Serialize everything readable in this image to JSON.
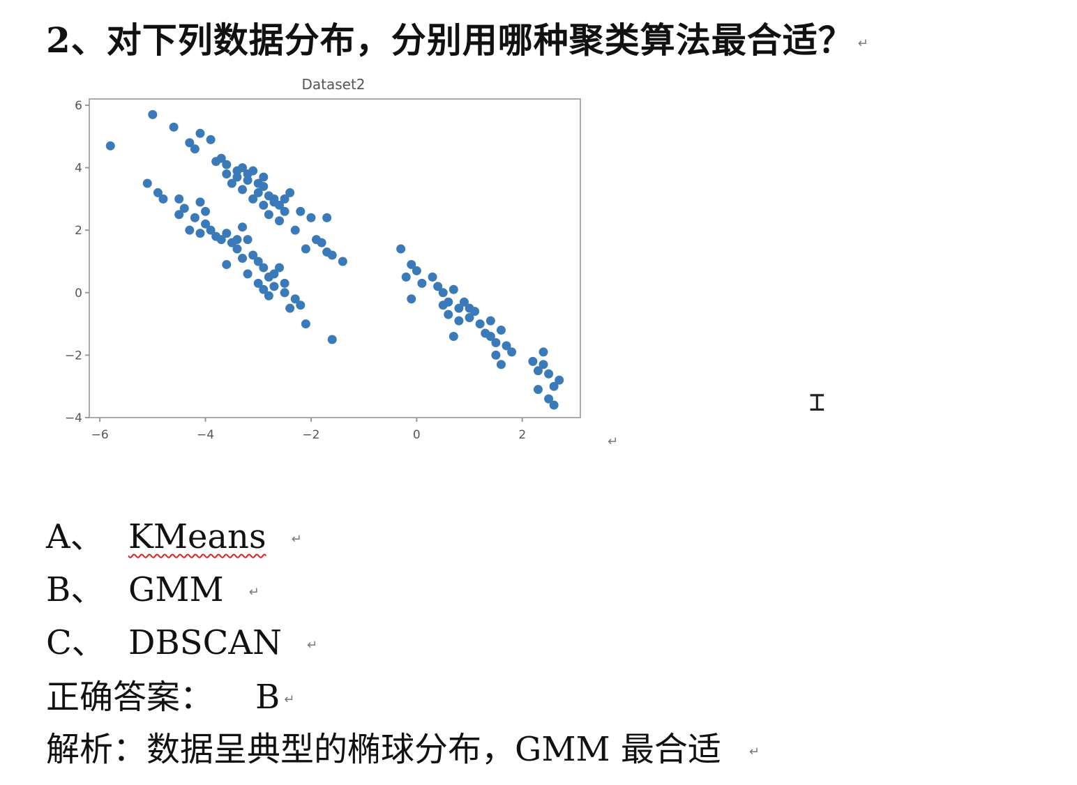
{
  "question": {
    "text": "2、对下列数据分布，分别用哪种聚类算法最合适？"
  },
  "return_mark": "↵",
  "cursor_icon": "text-cursor-icon",
  "options": [
    {
      "letter": "A、",
      "text": "KMeans",
      "spellcheck": true
    },
    {
      "letter": "B、",
      "text": "GMM",
      "spellcheck": false
    },
    {
      "letter": "C、",
      "text": "DBSCAN",
      "spellcheck": false
    }
  ],
  "answer": {
    "label": "正确答案：",
    "value": "B"
  },
  "analysis": {
    "text": "解析：数据呈典型的椭球分布，GMM 最合适"
  },
  "chart_data": {
    "type": "scatter",
    "title": "Dataset2",
    "xlabel": "",
    "ylabel": "",
    "xlim": [
      -6.2,
      3.1
    ],
    "ylim": [
      -4,
      6.2
    ],
    "xticks": [
      -6,
      -4,
      -2,
      0,
      2
    ],
    "yticks": [
      -4,
      -2,
      0,
      2,
      4,
      6
    ],
    "xtick_labels": [
      "−6",
      "−4",
      "−2",
      "0",
      "2"
    ],
    "ytick_labels": [
      "−4",
      "−2",
      "0",
      "2",
      "4",
      "6"
    ],
    "grid": false,
    "legend": "none",
    "color": "#3a7ab8",
    "series": [
      {
        "points": [
          [
            -5.8,
            4.7
          ],
          [
            -5.0,
            5.7
          ],
          [
            -4.6,
            5.3
          ],
          [
            -4.1,
            5.1
          ],
          [
            -3.9,
            4.9
          ],
          [
            -4.3,
            4.8
          ],
          [
            -4.2,
            4.6
          ],
          [
            -3.7,
            4.3
          ],
          [
            -3.6,
            4.1
          ],
          [
            -3.3,
            4.0
          ],
          [
            -3.1,
            3.9
          ],
          [
            -3.4,
            3.7
          ],
          [
            -3.2,
            3.6
          ],
          [
            -3.0,
            3.5
          ],
          [
            -2.9,
            3.7
          ],
          [
            -3.5,
            3.5
          ],
          [
            -3.3,
            3.3
          ],
          [
            -3.0,
            3.2
          ],
          [
            -2.8,
            3.1
          ],
          [
            -3.1,
            3.0
          ],
          [
            -2.7,
            3.0
          ],
          [
            -2.6,
            2.8
          ],
          [
            -2.9,
            2.8
          ],
          [
            -2.5,
            2.6
          ],
          [
            -2.8,
            2.5
          ],
          [
            -2.6,
            2.3
          ],
          [
            -2.2,
            2.6
          ],
          [
            -2.4,
            3.2
          ],
          [
            -2.0,
            2.4
          ],
          [
            -1.7,
            2.4
          ],
          [
            -2.3,
            2.0
          ],
          [
            -1.9,
            1.7
          ],
          [
            -1.8,
            1.6
          ],
          [
            -2.1,
            1.4
          ],
          [
            -1.7,
            1.3
          ],
          [
            -1.6,
            1.2
          ],
          [
            -1.4,
            1.0
          ],
          [
            -3.6,
            3.8
          ],
          [
            -3.8,
            4.2
          ],
          [
            -3.2,
            3.8
          ],
          [
            -2.7,
            2.9
          ],
          [
            -2.5,
            3.0
          ],
          [
            -3.4,
            3.9
          ],
          [
            -2.9,
            3.4
          ]
        ]
      },
      {
        "points": [
          [
            -5.1,
            3.5
          ],
          [
            -4.9,
            3.2
          ],
          [
            -4.8,
            3.0
          ],
          [
            -4.5,
            3.0
          ],
          [
            -4.4,
            2.7
          ],
          [
            -4.5,
            2.5
          ],
          [
            -4.1,
            2.9
          ],
          [
            -4.2,
            2.4
          ],
          [
            -4.0,
            2.2
          ],
          [
            -4.3,
            2.0
          ],
          [
            -4.1,
            1.9
          ],
          [
            -3.9,
            2.0
          ],
          [
            -3.8,
            1.8
          ],
          [
            -3.6,
            1.9
          ],
          [
            -3.5,
            1.6
          ],
          [
            -3.3,
            2.1
          ],
          [
            -3.4,
            1.4
          ],
          [
            -3.2,
            1.7
          ],
          [
            -3.3,
            1.1
          ],
          [
            -3.0,
            1.0
          ],
          [
            -3.6,
            0.9
          ],
          [
            -3.2,
            0.6
          ],
          [
            -2.9,
            0.8
          ],
          [
            -2.8,
            0.5
          ],
          [
            -3.0,
            0.3
          ],
          [
            -2.7,
            0.6
          ],
          [
            -2.5,
            0.3
          ],
          [
            -2.7,
            0.2
          ],
          [
            -2.5,
            0.0
          ],
          [
            -2.3,
            -0.2
          ],
          [
            -2.2,
            -0.4
          ],
          [
            -2.8,
            -0.1
          ],
          [
            -2.4,
            -0.5
          ],
          [
            -2.1,
            -1.0
          ],
          [
            -1.6,
            -1.5
          ],
          [
            -3.1,
            1.2
          ],
          [
            -3.4,
            1.7
          ],
          [
            -2.6,
            0.8
          ],
          [
            -2.9,
            0.1
          ],
          [
            -3.7,
            1.7
          ],
          [
            -4.0,
            2.6
          ]
        ]
      },
      {
        "points": [
          [
            -0.3,
            1.4
          ],
          [
            -0.1,
            0.9
          ],
          [
            -0.2,
            0.5
          ],
          [
            0.0,
            0.7
          ],
          [
            0.1,
            0.3
          ],
          [
            -0.1,
            -0.2
          ],
          [
            0.3,
            0.5
          ],
          [
            0.4,
            0.2
          ],
          [
            0.5,
            0.0
          ],
          [
            0.7,
            0.1
          ],
          [
            0.6,
            -0.3
          ],
          [
            0.8,
            -0.5
          ],
          [
            0.9,
            -0.3
          ],
          [
            0.6,
            -0.7
          ],
          [
            1.0,
            -0.8
          ],
          [
            0.7,
            -1.4
          ],
          [
            1.1,
            -0.6
          ],
          [
            1.2,
            -1.0
          ],
          [
            1.3,
            -1.3
          ],
          [
            1.4,
            -0.9
          ],
          [
            1.5,
            -1.6
          ],
          [
            1.6,
            -1.2
          ],
          [
            1.7,
            -1.7
          ],
          [
            1.5,
            -2.0
          ],
          [
            1.8,
            -1.9
          ],
          [
            1.6,
            -2.3
          ],
          [
            2.2,
            -2.2
          ],
          [
            2.3,
            -2.5
          ],
          [
            2.4,
            -1.9
          ],
          [
            2.5,
            -2.6
          ],
          [
            2.3,
            -3.1
          ],
          [
            2.6,
            -3.0
          ],
          [
            2.7,
            -2.8
          ],
          [
            2.5,
            -3.4
          ],
          [
            2.6,
            -3.6
          ],
          [
            0.8,
            -0.9
          ],
          [
            1.0,
            -0.5
          ],
          [
            0.5,
            -0.4
          ],
          [
            1.4,
            -1.4
          ],
          [
            2.4,
            -2.3
          ]
        ]
      }
    ]
  }
}
